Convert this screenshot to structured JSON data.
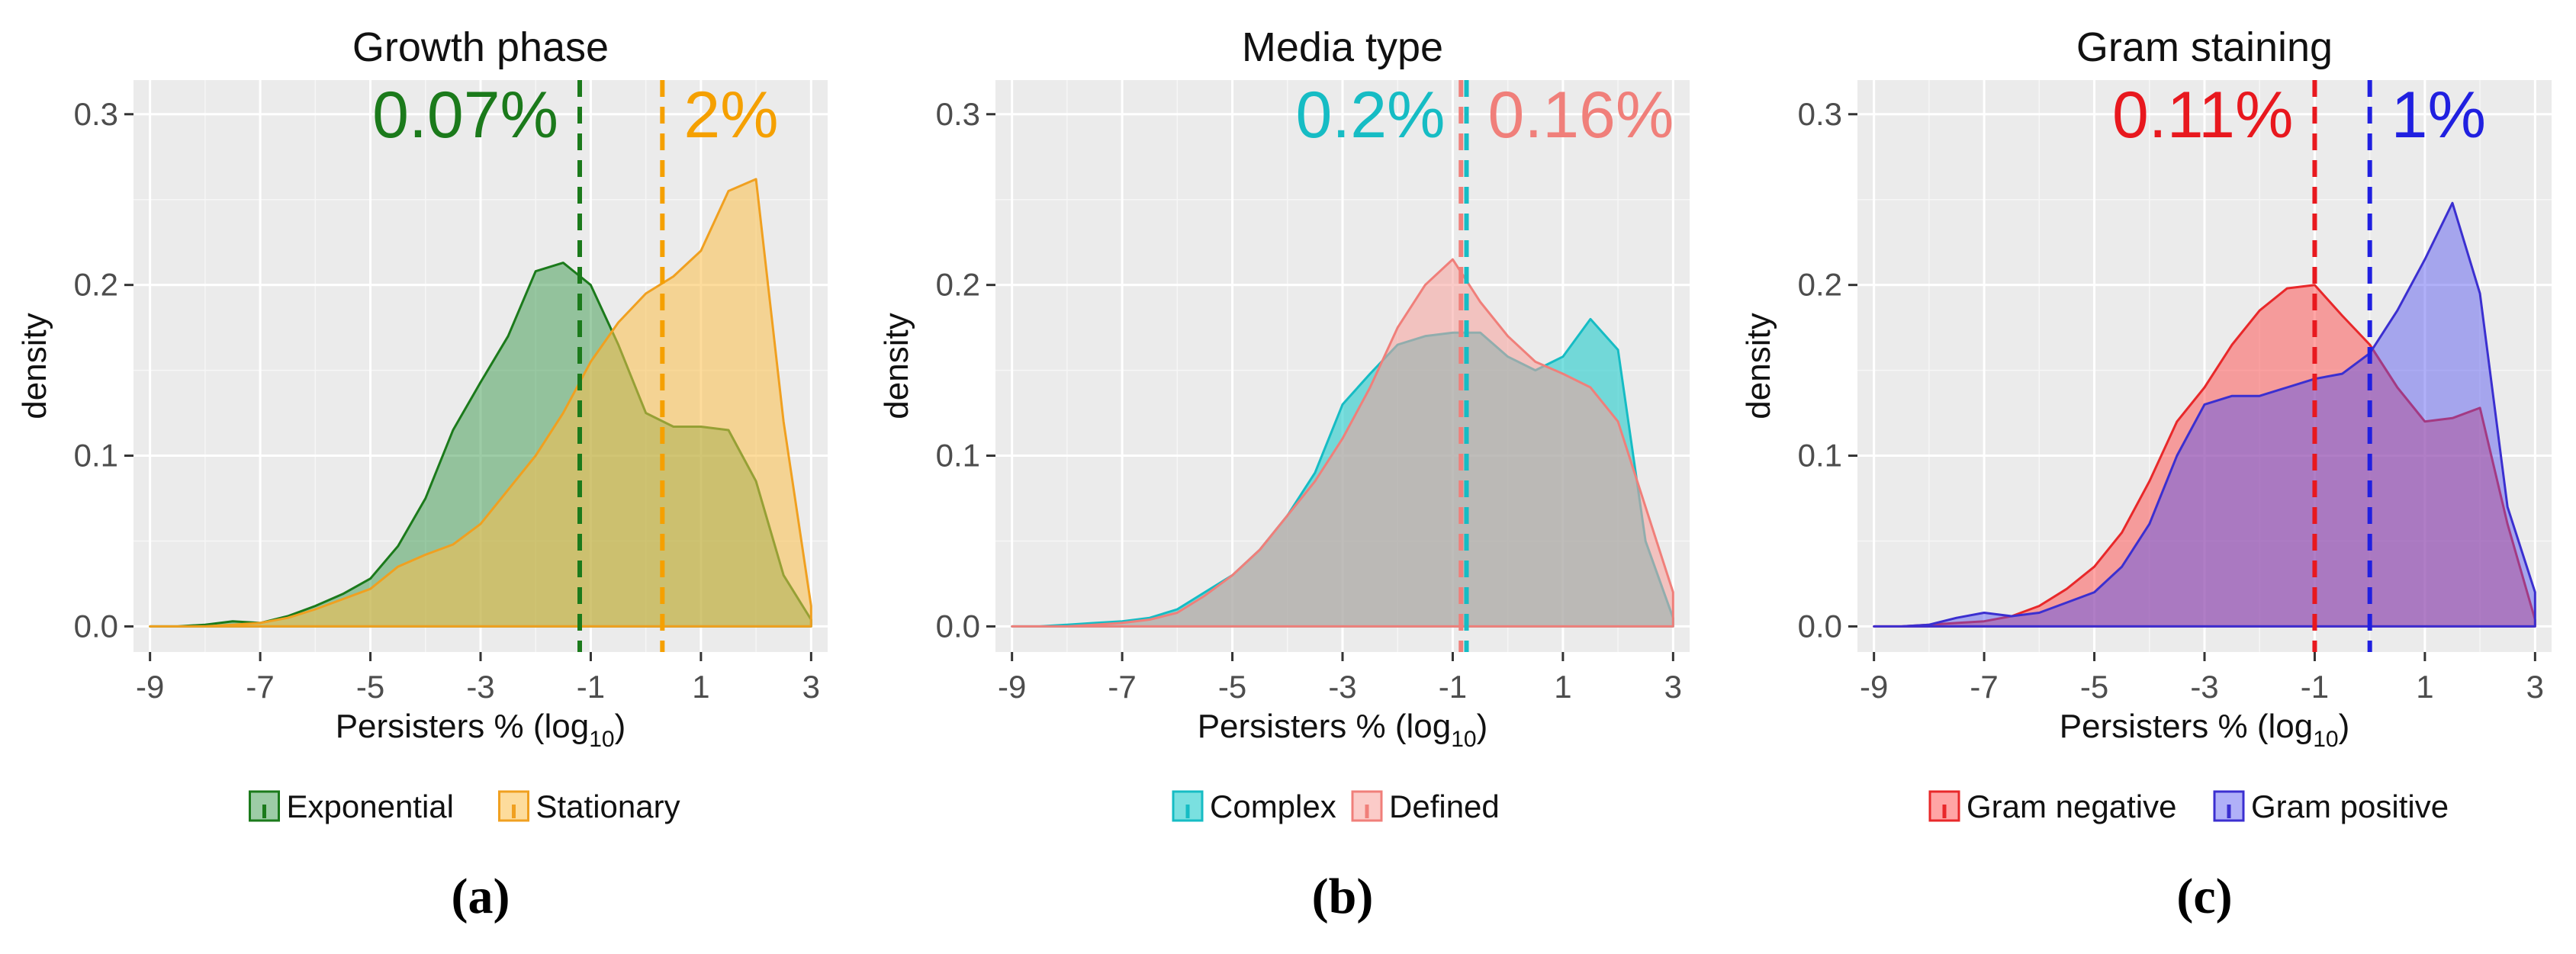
{
  "chart_data": [
    {
      "type": "area",
      "title": "Growth phase",
      "panel_label": "(a)",
      "xlabel": "Persisters % (log",
      "xlabel_sub": "10",
      "xlabel_close": ")",
      "ylabel": "density",
      "xlim": [
        -9.3,
        3.3
      ],
      "ylim": [
        -0.015,
        0.32
      ],
      "xticks": [
        -9,
        -7,
        -5,
        -3,
        -1,
        1,
        3
      ],
      "xtick_labels": [
        "-9",
        "-7",
        "-5",
        "-3",
        "-1",
        "1",
        "3"
      ],
      "yticks": [
        0.0,
        0.1,
        0.2,
        0.3
      ],
      "ytick_labels": [
        "0.0",
        "0.1",
        "0.2",
        "0.3"
      ],
      "grid": true,
      "legend_position": "bottom",
      "x": [
        -9,
        -8.5,
        -8,
        -7.5,
        -7,
        -6.5,
        -6,
        -5.5,
        -5,
        -4.5,
        -4,
        -3.5,
        -3,
        -2.5,
        -2,
        -1.5,
        -1,
        -0.5,
        0,
        0.5,
        1,
        1.5,
        2,
        2.5,
        3
      ],
      "series": [
        {
          "name": "Exponential",
          "color": "#1b7a1b",
          "fill": "#3b9a4e",
          "fill_opacity": 0.5,
          "values": [
            0.0,
            0.0,
            0.001,
            0.003,
            0.002,
            0.006,
            0.012,
            0.019,
            0.028,
            0.047,
            0.075,
            0.115,
            0.143,
            0.17,
            0.208,
            0.213,
            0.2,
            0.165,
            0.125,
            0.117,
            0.117,
            0.115,
            0.085,
            0.03,
            0.004
          ]
        },
        {
          "name": "Stationary",
          "color": "#f0a020",
          "fill": "#fbc04a",
          "fill_opacity": 0.55,
          "values": [
            0.0,
            0.0,
            0.0,
            0.001,
            0.002,
            0.005,
            0.01,
            0.016,
            0.022,
            0.035,
            0.042,
            0.048,
            0.06,
            0.08,
            0.1,
            0.125,
            0.155,
            0.178,
            0.195,
            0.205,
            0.22,
            0.255,
            0.262,
            0.12,
            0.012
          ]
        }
      ],
      "vlines": [
        {
          "x": -1.2,
          "label": "0.07%",
          "color": "#1b7a1b"
        },
        {
          "x": 0.3,
          "label": "2%",
          "color": "#f5a000"
        }
      ]
    },
    {
      "type": "area",
      "title": "Media type",
      "panel_label": "(b)",
      "xlabel": "Persisters % (log",
      "xlabel_sub": "10",
      "xlabel_close": ")",
      "ylabel": "density",
      "xlim": [
        -9.3,
        3.3
      ],
      "ylim": [
        -0.015,
        0.32
      ],
      "xticks": [
        -9,
        -7,
        -5,
        -3,
        -1,
        1,
        3
      ],
      "xtick_labels": [
        "-9",
        "-7",
        "-5",
        "-3",
        "-1",
        "1",
        "3"
      ],
      "yticks": [
        0.0,
        0.1,
        0.2,
        0.3
      ],
      "ytick_labels": [
        "0.0",
        "0.1",
        "0.2",
        "0.3"
      ],
      "grid": true,
      "legend_position": "bottom",
      "x": [
        -9,
        -8.5,
        -8,
        -7.5,
        -7,
        -6.5,
        -6,
        -5.5,
        -5,
        -4.5,
        -4,
        -3.5,
        -3,
        -2.5,
        -2,
        -1.5,
        -1,
        -0.5,
        0,
        0.5,
        1,
        1.5,
        2,
        2.5,
        3
      ],
      "series": [
        {
          "name": "Complex",
          "color": "#16bcc4",
          "fill": "#22cccc",
          "fill_opacity": 0.6,
          "values": [
            0.0,
            0.0,
            0.001,
            0.002,
            0.003,
            0.005,
            0.01,
            0.02,
            0.03,
            0.045,
            0.065,
            0.09,
            0.13,
            0.148,
            0.165,
            0.17,
            0.172,
            0.172,
            0.158,
            0.15,
            0.158,
            0.18,
            0.162,
            0.05,
            0.005
          ]
        },
        {
          "name": "Defined",
          "color": "#f07f7a",
          "fill": "#f8a09a",
          "fill_opacity": 0.55,
          "values": [
            0.0,
            0.0,
            0.0,
            0.001,
            0.002,
            0.004,
            0.008,
            0.018,
            0.03,
            0.045,
            0.065,
            0.085,
            0.11,
            0.14,
            0.175,
            0.2,
            0.215,
            0.19,
            0.17,
            0.155,
            0.148,
            0.14,
            0.12,
            0.07,
            0.02
          ]
        }
      ],
      "vlines": [
        {
          "x": -0.75,
          "label": "0.2%",
          "color": "#16bcc4"
        },
        {
          "x": -0.85,
          "label": "0.16%",
          "color": "#f07f7a"
        }
      ]
    },
    {
      "type": "area",
      "title": "Gram staining",
      "panel_label": "(c)",
      "xlabel": "Persisters % (log",
      "xlabel_sub": "10",
      "xlabel_close": ")",
      "ylabel": "density",
      "xlim": [
        -9.3,
        3.3
      ],
      "ylim": [
        -0.015,
        0.32
      ],
      "xticks": [
        -9,
        -7,
        -5,
        -3,
        -1,
        1,
        3
      ],
      "xtick_labels": [
        "-9",
        "-7",
        "-5",
        "-3",
        "-1",
        "1",
        "3"
      ],
      "yticks": [
        0.0,
        0.1,
        0.2,
        0.3
      ],
      "ytick_labels": [
        "0.0",
        "0.1",
        "0.2",
        "0.3"
      ],
      "grid": true,
      "legend_position": "bottom",
      "x": [
        -9,
        -8.5,
        -8,
        -7.5,
        -7,
        -6.5,
        -6,
        -5.5,
        -5,
        -4.5,
        -4,
        -3.5,
        -3,
        -2.5,
        -2,
        -1.5,
        -1,
        -0.5,
        0,
        0.5,
        1,
        1.5,
        2,
        2.5,
        3
      ],
      "series": [
        {
          "name": "Gram negative",
          "color": "#e8282a",
          "fill": "#ff4b4b",
          "fill_opacity": 0.5,
          "values": [
            0.0,
            0.0,
            0.001,
            0.002,
            0.003,
            0.006,
            0.012,
            0.022,
            0.035,
            0.055,
            0.085,
            0.12,
            0.14,
            0.165,
            0.185,
            0.198,
            0.2,
            0.182,
            0.165,
            0.14,
            0.12,
            0.122,
            0.128,
            0.06,
            0.004
          ]
        },
        {
          "name": "Gram positive",
          "color": "#3b2fd0",
          "fill": "#5050f0",
          "fill_opacity": 0.45,
          "values": [
            0.0,
            0.0,
            0.001,
            0.005,
            0.008,
            0.006,
            0.008,
            0.014,
            0.02,
            0.035,
            0.06,
            0.1,
            0.13,
            0.135,
            0.135,
            0.14,
            0.145,
            0.148,
            0.16,
            0.185,
            0.215,
            0.248,
            0.195,
            0.07,
            0.02
          ]
        }
      ],
      "vlines": [
        {
          "x": -1.0,
          "label": "0.11%",
          "color": "#e8181e"
        },
        {
          "x": 0.0,
          "label": "1%",
          "color": "#2020e0"
        }
      ]
    }
  ]
}
